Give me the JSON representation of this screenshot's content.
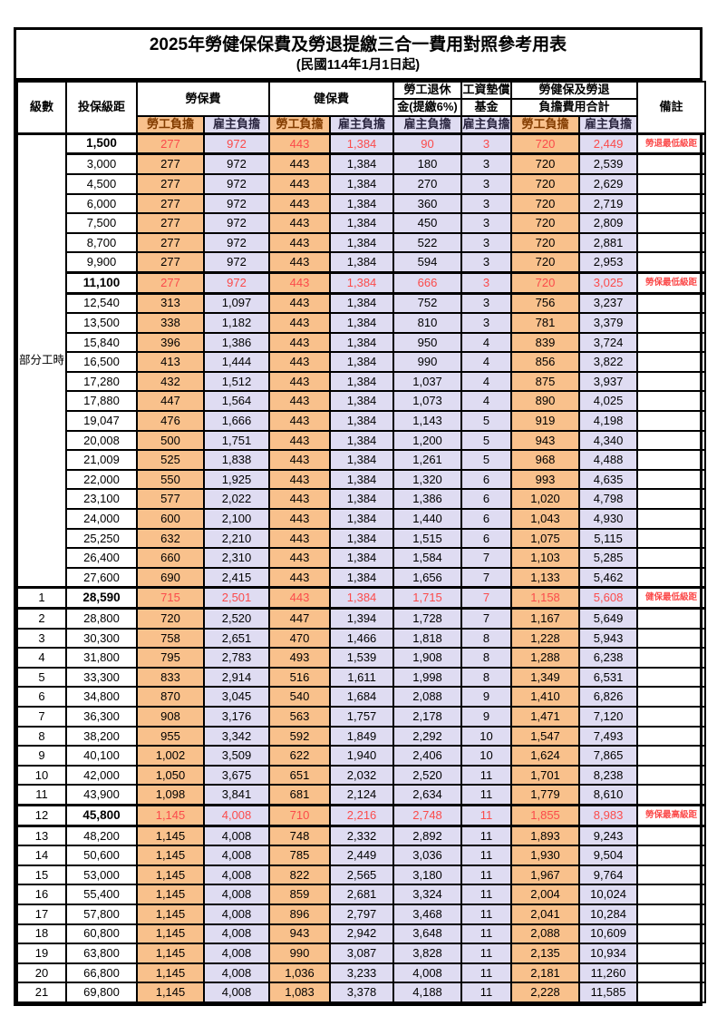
{
  "title": "2025年勞健保保費及勞退提繳三合一費用對照參考用表",
  "subtitle": "(民國114年1月1日起)",
  "colors": {
    "worker_fill": "#F9C18C",
    "employer_fill": "#DFDCF2",
    "highlight_red": "#FB4B4B",
    "border": "#000000"
  },
  "header": {
    "level": "級數",
    "bracket": "投保級距",
    "labor_insurance": "勞保費",
    "health_insurance": "健保費",
    "pension_line1": "勞工退休",
    "pension_line2": "金(提繳6%)",
    "wage_fund_line1": "工資墊償",
    "wage_fund_line2": "基金",
    "total_line1": "勞健保及勞退",
    "total_line2": "負擔費用合計",
    "worker_share": "勞工負擔",
    "employer_share": "雇主負擔",
    "remark": "備註"
  },
  "part_time_label": "部分工時",
  "rows": [
    {
      "level": "",
      "bracket": "1,500",
      "li_w": "277",
      "li_e": "972",
      "hi_w": "443",
      "hi_e": "1,384",
      "pension": "90",
      "fund": "3",
      "tot_w": "720",
      "tot_e": "2,449",
      "remark": "勞退最低級距",
      "hl": true
    },
    {
      "level": "",
      "bracket": "3,000",
      "li_w": "277",
      "li_e": "972",
      "hi_w": "443",
      "hi_e": "1,384",
      "pension": "180",
      "fund": "3",
      "tot_w": "720",
      "tot_e": "2,539",
      "remark": "",
      "hl": false
    },
    {
      "level": "",
      "bracket": "4,500",
      "li_w": "277",
      "li_e": "972",
      "hi_w": "443",
      "hi_e": "1,384",
      "pension": "270",
      "fund": "3",
      "tot_w": "720",
      "tot_e": "2,629",
      "remark": "",
      "hl": false
    },
    {
      "level": "",
      "bracket": "6,000",
      "li_w": "277",
      "li_e": "972",
      "hi_w": "443",
      "hi_e": "1,384",
      "pension": "360",
      "fund": "3",
      "tot_w": "720",
      "tot_e": "2,719",
      "remark": "",
      "hl": false
    },
    {
      "level": "",
      "bracket": "7,500",
      "li_w": "277",
      "li_e": "972",
      "hi_w": "443",
      "hi_e": "1,384",
      "pension": "450",
      "fund": "3",
      "tot_w": "720",
      "tot_e": "2,809",
      "remark": "",
      "hl": false
    },
    {
      "level": "",
      "bracket": "8,700",
      "li_w": "277",
      "li_e": "972",
      "hi_w": "443",
      "hi_e": "1,384",
      "pension": "522",
      "fund": "3",
      "tot_w": "720",
      "tot_e": "2,881",
      "remark": "",
      "hl": false
    },
    {
      "level": "",
      "bracket": "9,900",
      "li_w": "277",
      "li_e": "972",
      "hi_w": "443",
      "hi_e": "1,384",
      "pension": "594",
      "fund": "3",
      "tot_w": "720",
      "tot_e": "2,953",
      "remark": "",
      "hl": false
    },
    {
      "level": "",
      "bracket": "11,100",
      "li_w": "277",
      "li_e": "972",
      "hi_w": "443",
      "hi_e": "1,384",
      "pension": "666",
      "fund": "3",
      "tot_w": "720",
      "tot_e": "3,025",
      "remark": "勞保最低級距",
      "hl": true
    },
    {
      "level": "",
      "bracket": "12,540",
      "li_w": "313",
      "li_e": "1,097",
      "hi_w": "443",
      "hi_e": "1,384",
      "pension": "752",
      "fund": "3",
      "tot_w": "756",
      "tot_e": "3,237",
      "remark": "",
      "hl": false
    },
    {
      "level": "",
      "bracket": "13,500",
      "li_w": "338",
      "li_e": "1,182",
      "hi_w": "443",
      "hi_e": "1,384",
      "pension": "810",
      "fund": "3",
      "tot_w": "781",
      "tot_e": "3,379",
      "remark": "",
      "hl": false
    },
    {
      "level": "",
      "bracket": "15,840",
      "li_w": "396",
      "li_e": "1,386",
      "hi_w": "443",
      "hi_e": "1,384",
      "pension": "950",
      "fund": "4",
      "tot_w": "839",
      "tot_e": "3,724",
      "remark": "",
      "hl": false
    },
    {
      "level": "",
      "bracket": "16,500",
      "li_w": "413",
      "li_e": "1,444",
      "hi_w": "443",
      "hi_e": "1,384",
      "pension": "990",
      "fund": "4",
      "tot_w": "856",
      "tot_e": "3,822",
      "remark": "",
      "hl": false
    },
    {
      "level": "",
      "bracket": "17,280",
      "li_w": "432",
      "li_e": "1,512",
      "hi_w": "443",
      "hi_e": "1,384",
      "pension": "1,037",
      "fund": "4",
      "tot_w": "875",
      "tot_e": "3,937",
      "remark": "",
      "hl": false
    },
    {
      "level": "",
      "bracket": "17,880",
      "li_w": "447",
      "li_e": "1,564",
      "hi_w": "443",
      "hi_e": "1,384",
      "pension": "1,073",
      "fund": "4",
      "tot_w": "890",
      "tot_e": "4,025",
      "remark": "",
      "hl": false
    },
    {
      "level": "",
      "bracket": "19,047",
      "li_w": "476",
      "li_e": "1,666",
      "hi_w": "443",
      "hi_e": "1,384",
      "pension": "1,143",
      "fund": "5",
      "tot_w": "919",
      "tot_e": "4,198",
      "remark": "",
      "hl": false
    },
    {
      "level": "",
      "bracket": "20,008",
      "li_w": "500",
      "li_e": "1,751",
      "hi_w": "443",
      "hi_e": "1,384",
      "pension": "1,200",
      "fund": "5",
      "tot_w": "943",
      "tot_e": "4,340",
      "remark": "",
      "hl": false
    },
    {
      "level": "",
      "bracket": "21,009",
      "li_w": "525",
      "li_e": "1,838",
      "hi_w": "443",
      "hi_e": "1,384",
      "pension": "1,261",
      "fund": "5",
      "tot_w": "968",
      "tot_e": "4,488",
      "remark": "",
      "hl": false
    },
    {
      "level": "",
      "bracket": "22,000",
      "li_w": "550",
      "li_e": "1,925",
      "hi_w": "443",
      "hi_e": "1,384",
      "pension": "1,320",
      "fund": "6",
      "tot_w": "993",
      "tot_e": "4,635",
      "remark": "",
      "hl": false
    },
    {
      "level": "",
      "bracket": "23,100",
      "li_w": "577",
      "li_e": "2,022",
      "hi_w": "443",
      "hi_e": "1,384",
      "pension": "1,386",
      "fund": "6",
      "tot_w": "1,020",
      "tot_e": "4,798",
      "remark": "",
      "hl": false
    },
    {
      "level": "",
      "bracket": "24,000",
      "li_w": "600",
      "li_e": "2,100",
      "hi_w": "443",
      "hi_e": "1,384",
      "pension": "1,440",
      "fund": "6",
      "tot_w": "1,043",
      "tot_e": "4,930",
      "remark": "",
      "hl": false
    },
    {
      "level": "",
      "bracket": "25,250",
      "li_w": "632",
      "li_e": "2,210",
      "hi_w": "443",
      "hi_e": "1,384",
      "pension": "1,515",
      "fund": "6",
      "tot_w": "1,075",
      "tot_e": "5,115",
      "remark": "",
      "hl": false
    },
    {
      "level": "",
      "bracket": "26,400",
      "li_w": "660",
      "li_e": "2,310",
      "hi_w": "443",
      "hi_e": "1,384",
      "pension": "1,584",
      "fund": "7",
      "tot_w": "1,103",
      "tot_e": "5,285",
      "remark": "",
      "hl": false
    },
    {
      "level": "",
      "bracket": "27,600",
      "li_w": "690",
      "li_e": "2,415",
      "hi_w": "443",
      "hi_e": "1,384",
      "pension": "1,656",
      "fund": "7",
      "tot_w": "1,133",
      "tot_e": "5,462",
      "remark": "",
      "hl": false
    },
    {
      "level": "1",
      "bracket": "28,590",
      "li_w": "715",
      "li_e": "2,501",
      "hi_w": "443",
      "hi_e": "1,384",
      "pension": "1,715",
      "fund": "7",
      "tot_w": "1,158",
      "tot_e": "5,608",
      "remark": "健保最低級距",
      "hl": true
    },
    {
      "level": "2",
      "bracket": "28,800",
      "li_w": "720",
      "li_e": "2,520",
      "hi_w": "447",
      "hi_e": "1,394",
      "pension": "1,728",
      "fund": "7",
      "tot_w": "1,167",
      "tot_e": "5,649",
      "remark": "",
      "hl": false
    },
    {
      "level": "3",
      "bracket": "30,300",
      "li_w": "758",
      "li_e": "2,651",
      "hi_w": "470",
      "hi_e": "1,466",
      "pension": "1,818",
      "fund": "8",
      "tot_w": "1,228",
      "tot_e": "5,943",
      "remark": "",
      "hl": false
    },
    {
      "level": "4",
      "bracket": "31,800",
      "li_w": "795",
      "li_e": "2,783",
      "hi_w": "493",
      "hi_e": "1,539",
      "pension": "1,908",
      "fund": "8",
      "tot_w": "1,288",
      "tot_e": "6,238",
      "remark": "",
      "hl": false
    },
    {
      "level": "5",
      "bracket": "33,300",
      "li_w": "833",
      "li_e": "2,914",
      "hi_w": "516",
      "hi_e": "1,611",
      "pension": "1,998",
      "fund": "8",
      "tot_w": "1,349",
      "tot_e": "6,531",
      "remark": "",
      "hl": false
    },
    {
      "level": "6",
      "bracket": "34,800",
      "li_w": "870",
      "li_e": "3,045",
      "hi_w": "540",
      "hi_e": "1,684",
      "pension": "2,088",
      "fund": "9",
      "tot_w": "1,410",
      "tot_e": "6,826",
      "remark": "",
      "hl": false
    },
    {
      "level": "7",
      "bracket": "36,300",
      "li_w": "908",
      "li_e": "3,176",
      "hi_w": "563",
      "hi_e": "1,757",
      "pension": "2,178",
      "fund": "9",
      "tot_w": "1,471",
      "tot_e": "7,120",
      "remark": "",
      "hl": false
    },
    {
      "level": "8",
      "bracket": "38,200",
      "li_w": "955",
      "li_e": "3,342",
      "hi_w": "592",
      "hi_e": "1,849",
      "pension": "2,292",
      "fund": "10",
      "tot_w": "1,547",
      "tot_e": "7,493",
      "remark": "",
      "hl": false
    },
    {
      "level": "9",
      "bracket": "40,100",
      "li_w": "1,002",
      "li_e": "3,509",
      "hi_w": "622",
      "hi_e": "1,940",
      "pension": "2,406",
      "fund": "10",
      "tot_w": "1,624",
      "tot_e": "7,865",
      "remark": "",
      "hl": false
    },
    {
      "level": "10",
      "bracket": "42,000",
      "li_w": "1,050",
      "li_e": "3,675",
      "hi_w": "651",
      "hi_e": "2,032",
      "pension": "2,520",
      "fund": "11",
      "tot_w": "1,701",
      "tot_e": "8,238",
      "remark": "",
      "hl": false
    },
    {
      "level": "11",
      "bracket": "43,900",
      "li_w": "1,098",
      "li_e": "3,841",
      "hi_w": "681",
      "hi_e": "2,124",
      "pension": "2,634",
      "fund": "11",
      "tot_w": "1,779",
      "tot_e": "8,610",
      "remark": "",
      "hl": false
    },
    {
      "level": "12",
      "bracket": "45,800",
      "li_w": "1,145",
      "li_e": "4,008",
      "hi_w": "710",
      "hi_e": "2,216",
      "pension": "2,748",
      "fund": "11",
      "tot_w": "1,855",
      "tot_e": "8,983",
      "remark": "勞保最高級距",
      "hl": true
    },
    {
      "level": "13",
      "bracket": "48,200",
      "li_w": "1,145",
      "li_e": "4,008",
      "hi_w": "748",
      "hi_e": "2,332",
      "pension": "2,892",
      "fund": "11",
      "tot_w": "1,893",
      "tot_e": "9,243",
      "remark": "",
      "hl": false
    },
    {
      "level": "14",
      "bracket": "50,600",
      "li_w": "1,145",
      "li_e": "4,008",
      "hi_w": "785",
      "hi_e": "2,449",
      "pension": "3,036",
      "fund": "11",
      "tot_w": "1,930",
      "tot_e": "9,504",
      "remark": "",
      "hl": false
    },
    {
      "level": "15",
      "bracket": "53,000",
      "li_w": "1,145",
      "li_e": "4,008",
      "hi_w": "822",
      "hi_e": "2,565",
      "pension": "3,180",
      "fund": "11",
      "tot_w": "1,967",
      "tot_e": "9,764",
      "remark": "",
      "hl": false
    },
    {
      "level": "16",
      "bracket": "55,400",
      "li_w": "1,145",
      "li_e": "4,008",
      "hi_w": "859",
      "hi_e": "2,681",
      "pension": "3,324",
      "fund": "11",
      "tot_w": "2,004",
      "tot_e": "10,024",
      "remark": "",
      "hl": false
    },
    {
      "level": "17",
      "bracket": "57,800",
      "li_w": "1,145",
      "li_e": "4,008",
      "hi_w": "896",
      "hi_e": "2,797",
      "pension": "3,468",
      "fund": "11",
      "tot_w": "2,041",
      "tot_e": "10,284",
      "remark": "",
      "hl": false
    },
    {
      "level": "18",
      "bracket": "60,800",
      "li_w": "1,145",
      "li_e": "4,008",
      "hi_w": "943",
      "hi_e": "2,942",
      "pension": "3,648",
      "fund": "11",
      "tot_w": "2,088",
      "tot_e": "10,609",
      "remark": "",
      "hl": false
    },
    {
      "level": "19",
      "bracket": "63,800",
      "li_w": "1,145",
      "li_e": "4,008",
      "hi_w": "990",
      "hi_e": "3,087",
      "pension": "3,828",
      "fund": "11",
      "tot_w": "2,135",
      "tot_e": "10,934",
      "remark": "",
      "hl": false
    },
    {
      "level": "20",
      "bracket": "66,800",
      "li_w": "1,145",
      "li_e": "4,008",
      "hi_w": "1,036",
      "hi_e": "3,233",
      "pension": "4,008",
      "fund": "11",
      "tot_w": "2,181",
      "tot_e": "11,260",
      "remark": "",
      "hl": false
    },
    {
      "level": "21",
      "bracket": "69,800",
      "li_w": "1,145",
      "li_e": "4,008",
      "hi_w": "1,083",
      "hi_e": "3,378",
      "pension": "4,188",
      "fund": "11",
      "tot_w": "2,228",
      "tot_e": "11,585",
      "remark": "",
      "hl": false
    }
  ]
}
